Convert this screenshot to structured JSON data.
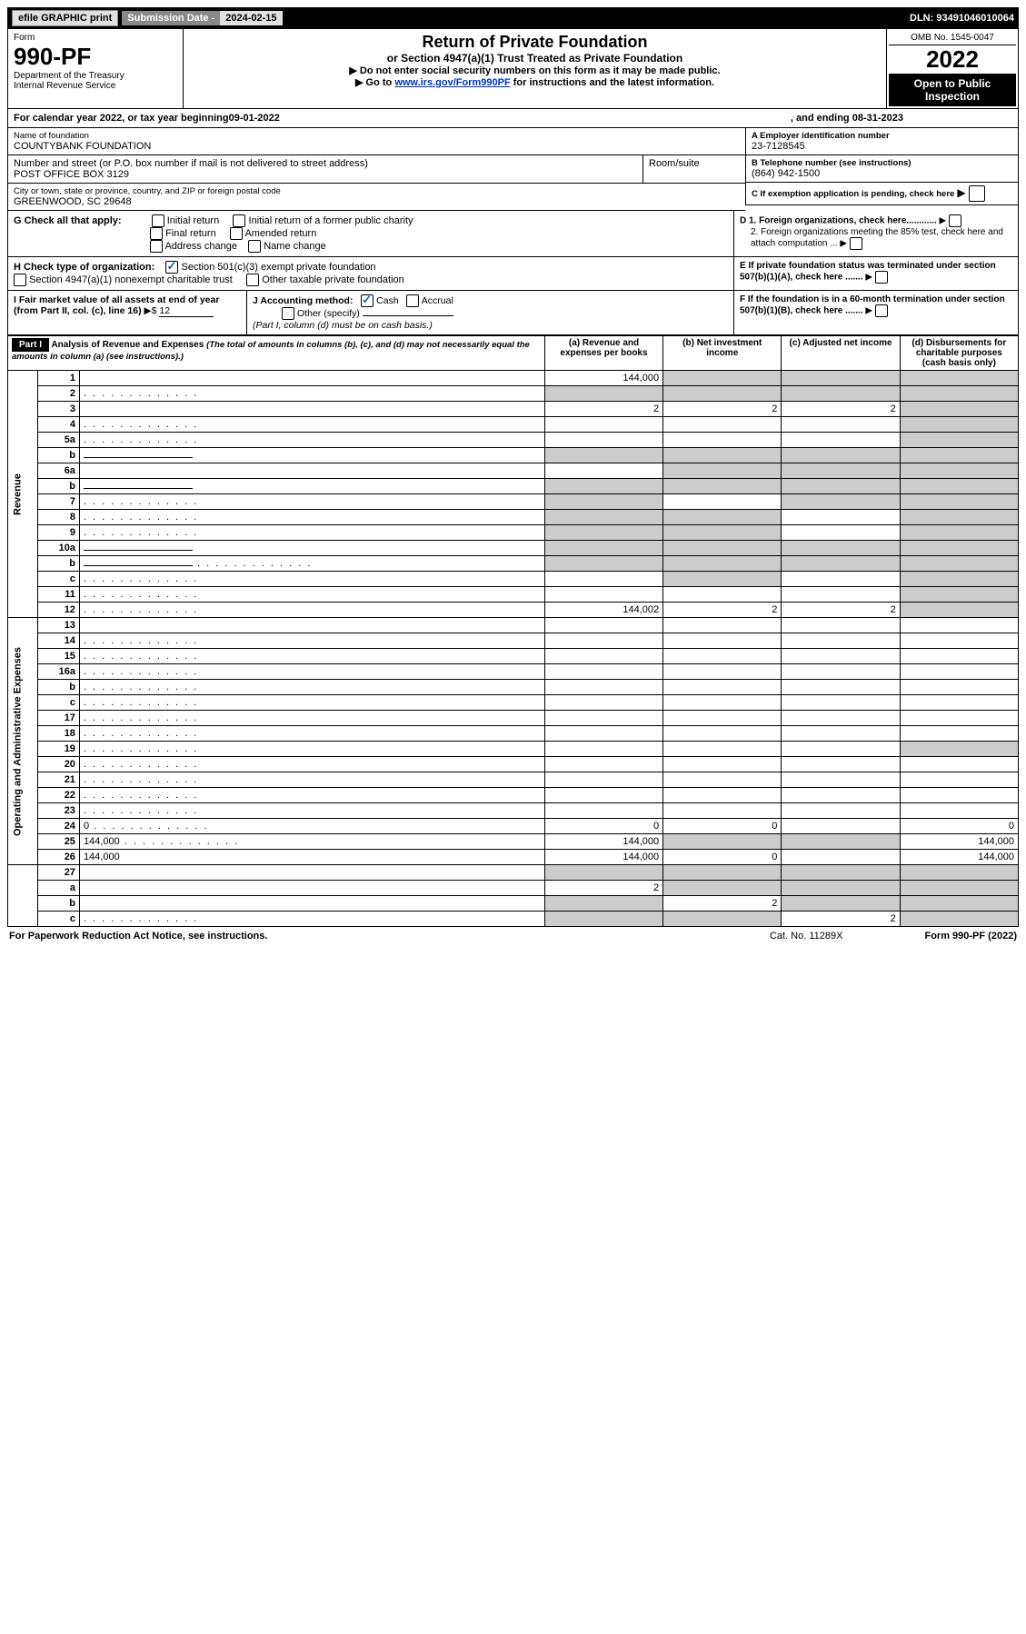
{
  "top": {
    "efile": "efile GRAPHIC print",
    "sub_label": "Submission Date - ",
    "sub_date": "2024-02-15",
    "dln": "DLN: 93491046010064"
  },
  "header": {
    "form_label": "Form",
    "form_num": "990-PF",
    "dept1": "Department of the Treasury",
    "dept2": "Internal Revenue Service",
    "title": "Return of Private Foundation",
    "subtitle": "or Section 4947(a)(1) Trust Treated as Private Foundation",
    "note1": "▶ Do not enter social security numbers on this form as it may be made public.",
    "note2_prefix": "▶ Go to ",
    "note2_link": "www.irs.gov/Form990PF",
    "note2_suffix": " for instructions and the latest information.",
    "omb": "OMB No. 1545-0047",
    "year": "2022",
    "open": "Open to Public Inspection"
  },
  "calyear": {
    "prefix": "For calendar year 2022, or tax year beginning ",
    "begin": "09-01-2022",
    "mid": ", and ending ",
    "end": "08-31-2023"
  },
  "entity": {
    "name_lbl": "Name of foundation",
    "name": "COUNTYBANK FOUNDATION",
    "addr_lbl": "Number and street (or P.O. box number if mail is not delivered to street address)",
    "addr": "POST OFFICE BOX 3129",
    "room_lbl": "Room/suite",
    "room": "",
    "city_lbl": "City or town, state or province, country, and ZIP or foreign postal code",
    "city": "GREENWOOD, SC  29648",
    "ein_lbl": "A Employer identification number",
    "ein": "23-7128545",
    "phone_lbl": "B Telephone number (see instructions)",
    "phone": "(864) 942-1500",
    "c_lbl": "C If exemption application is pending, check here"
  },
  "sectionG": {
    "label": "G Check all that apply:",
    "opts": [
      "Initial return",
      "Initial return of a former public charity",
      "Final return",
      "Amended return",
      "Address change",
      "Name change"
    ]
  },
  "sectionH": {
    "label": "H Check type of organization:",
    "opt1": "Section 501(c)(3) exempt private foundation",
    "opt2": "Section 4947(a)(1) nonexempt charitable trust",
    "opt3": "Other taxable private foundation"
  },
  "sectionD": {
    "d1": "D 1. Foreign organizations, check here............",
    "d2": "2. Foreign organizations meeting the 85% test, check here and attach computation ..."
  },
  "sectionE": "E  If private foundation status was terminated under section 507(b)(1)(A), check here .......",
  "sectionF": "F  If the foundation is in a 60-month termination under section 507(b)(1)(B), check here .......",
  "sectionI": {
    "label": "I Fair market value of all assets at end of year (from Part II, col. (c), line 16)",
    "arrow": "▶$",
    "value": "12"
  },
  "sectionJ": {
    "label": "J Accounting method:",
    "cash": "Cash",
    "accrual": "Accrual",
    "other": "Other (specify)",
    "note": "(Part I, column (d) must be on cash basis.)"
  },
  "part1": {
    "header": "Part I",
    "title": "Analysis of Revenue and Expenses",
    "title_note": " (The total of amounts in columns (b), (c), and (d) may not necessarily equal the amounts in column (a) (see instructions).)",
    "col_a": "(a)   Revenue and expenses per books",
    "col_b": "(b)   Net investment income",
    "col_c": "(c)   Adjusted net income",
    "col_d": "(d)   Disbursements for charitable purposes (cash basis only)"
  },
  "side_labels": {
    "revenue": "Revenue",
    "expenses": "Operating and Administrative Expenses"
  },
  "rows": [
    {
      "n": "1",
      "d": "",
      "a": "144,000",
      "b": "",
      "c": "",
      "shade_b": true,
      "shade_c": true,
      "shade_d": true
    },
    {
      "n": "2",
      "d": "",
      "dots": true,
      "a": "",
      "b": "",
      "c": "",
      "shade_a": true,
      "shade_b": true,
      "shade_c": true,
      "shade_d": true
    },
    {
      "n": "3",
      "d": "",
      "a": "2",
      "b": "2",
      "c": "2",
      "shade_d": true
    },
    {
      "n": "4",
      "d": "",
      "dots": true,
      "a": "",
      "b": "",
      "c": "",
      "shade_d": true
    },
    {
      "n": "5a",
      "d": "",
      "dots": true,
      "a": "",
      "b": "",
      "c": "",
      "shade_d": true
    },
    {
      "n": "b",
      "d": "",
      "line": true,
      "a": "",
      "b": "",
      "c": "",
      "shade_a": true,
      "shade_b": true,
      "shade_c": true,
      "shade_d": true
    },
    {
      "n": "6a",
      "d": "",
      "a": "",
      "b": "",
      "c": "",
      "shade_b": true,
      "shade_c": true,
      "shade_d": true
    },
    {
      "n": "b",
      "d": "",
      "line": true,
      "a": "",
      "b": "",
      "c": "",
      "shade_a": true,
      "shade_b": true,
      "shade_c": true,
      "shade_d": true
    },
    {
      "n": "7",
      "d": "",
      "dots": true,
      "a": "",
      "b": "",
      "c": "",
      "shade_a": true,
      "shade_c": true,
      "shade_d": true
    },
    {
      "n": "8",
      "d": "",
      "dots": true,
      "a": "",
      "b": "",
      "c": "",
      "shade_a": true,
      "shade_b": true,
      "shade_d": true
    },
    {
      "n": "9",
      "d": "",
      "dots": true,
      "a": "",
      "b": "",
      "c": "",
      "shade_a": true,
      "shade_b": true,
      "shade_d": true
    },
    {
      "n": "10a",
      "d": "",
      "line": true,
      "a": "",
      "b": "",
      "c": "",
      "shade_a": true,
      "shade_b": true,
      "shade_c": true,
      "shade_d": true
    },
    {
      "n": "b",
      "d": "",
      "dots": true,
      "line": true,
      "a": "",
      "b": "",
      "c": "",
      "shade_a": true,
      "shade_b": true,
      "shade_c": true,
      "shade_d": true
    },
    {
      "n": "c",
      "d": "",
      "dots": true,
      "a": "",
      "b": "",
      "c": "",
      "shade_b": true,
      "shade_d": true
    },
    {
      "n": "11",
      "d": "",
      "dots": true,
      "a": "",
      "b": "",
      "c": "",
      "shade_d": true
    },
    {
      "n": "12",
      "d": "",
      "dots": true,
      "a": "144,002",
      "b": "2",
      "c": "2",
      "shade_d": true
    }
  ],
  "exp_rows": [
    {
      "n": "13",
      "d": "",
      "a": "",
      "b": "",
      "c": ""
    },
    {
      "n": "14",
      "d": "",
      "dots": true,
      "a": "",
      "b": "",
      "c": ""
    },
    {
      "n": "15",
      "d": "",
      "dots": true,
      "a": "",
      "b": "",
      "c": ""
    },
    {
      "n": "16a",
      "d": "",
      "dots": true,
      "a": "",
      "b": "",
      "c": ""
    },
    {
      "n": "b",
      "d": "",
      "dots": true,
      "a": "",
      "b": "",
      "c": ""
    },
    {
      "n": "c",
      "d": "",
      "dots": true,
      "a": "",
      "b": "",
      "c": ""
    },
    {
      "n": "17",
      "d": "",
      "dots": true,
      "a": "",
      "b": "",
      "c": ""
    },
    {
      "n": "18",
      "d": "",
      "dots": true,
      "a": "",
      "b": "",
      "c": ""
    },
    {
      "n": "19",
      "d": "",
      "dots": true,
      "a": "",
      "b": "",
      "c": "",
      "shade_d": true
    },
    {
      "n": "20",
      "d": "",
      "dots": true,
      "a": "",
      "b": "",
      "c": ""
    },
    {
      "n": "21",
      "d": "",
      "dots": true,
      "a": "",
      "b": "",
      "c": ""
    },
    {
      "n": "22",
      "d": "",
      "dots": true,
      "a": "",
      "b": "",
      "c": ""
    },
    {
      "n": "23",
      "d": "",
      "dots": true,
      "a": "",
      "b": "",
      "c": ""
    },
    {
      "n": "24",
      "d": "0",
      "dots": true,
      "a": "0",
      "b": "0",
      "c": ""
    },
    {
      "n": "25",
      "d": "144,000",
      "dots": true,
      "a": "144,000",
      "b": "",
      "c": "",
      "shade_b": true,
      "shade_c": true
    },
    {
      "n": "26",
      "d": "144,000",
      "a": "144,000",
      "b": "0",
      "c": ""
    }
  ],
  "bottom_rows": [
    {
      "n": "27",
      "d": "",
      "a": "",
      "b": "",
      "c": "",
      "shade_a": true,
      "shade_b": true,
      "shade_c": true,
      "shade_d": true
    },
    {
      "n": "a",
      "d": "",
      "a": "2",
      "b": "",
      "c": "",
      "shade_b": true,
      "shade_c": true,
      "shade_d": true
    },
    {
      "n": "b",
      "d": "",
      "a": "",
      "b": "2",
      "c": "",
      "shade_a": true,
      "shade_c": true,
      "shade_d": true
    },
    {
      "n": "c",
      "d": "",
      "dots": true,
      "a": "",
      "b": "",
      "c": "2",
      "shade_a": true,
      "shade_b": true,
      "shade_d": true
    }
  ],
  "footer": {
    "left": "For Paperwork Reduction Act Notice, see instructions.",
    "cat": "Cat. No. 11289X",
    "right": "Form 990-PF (2022)"
  }
}
